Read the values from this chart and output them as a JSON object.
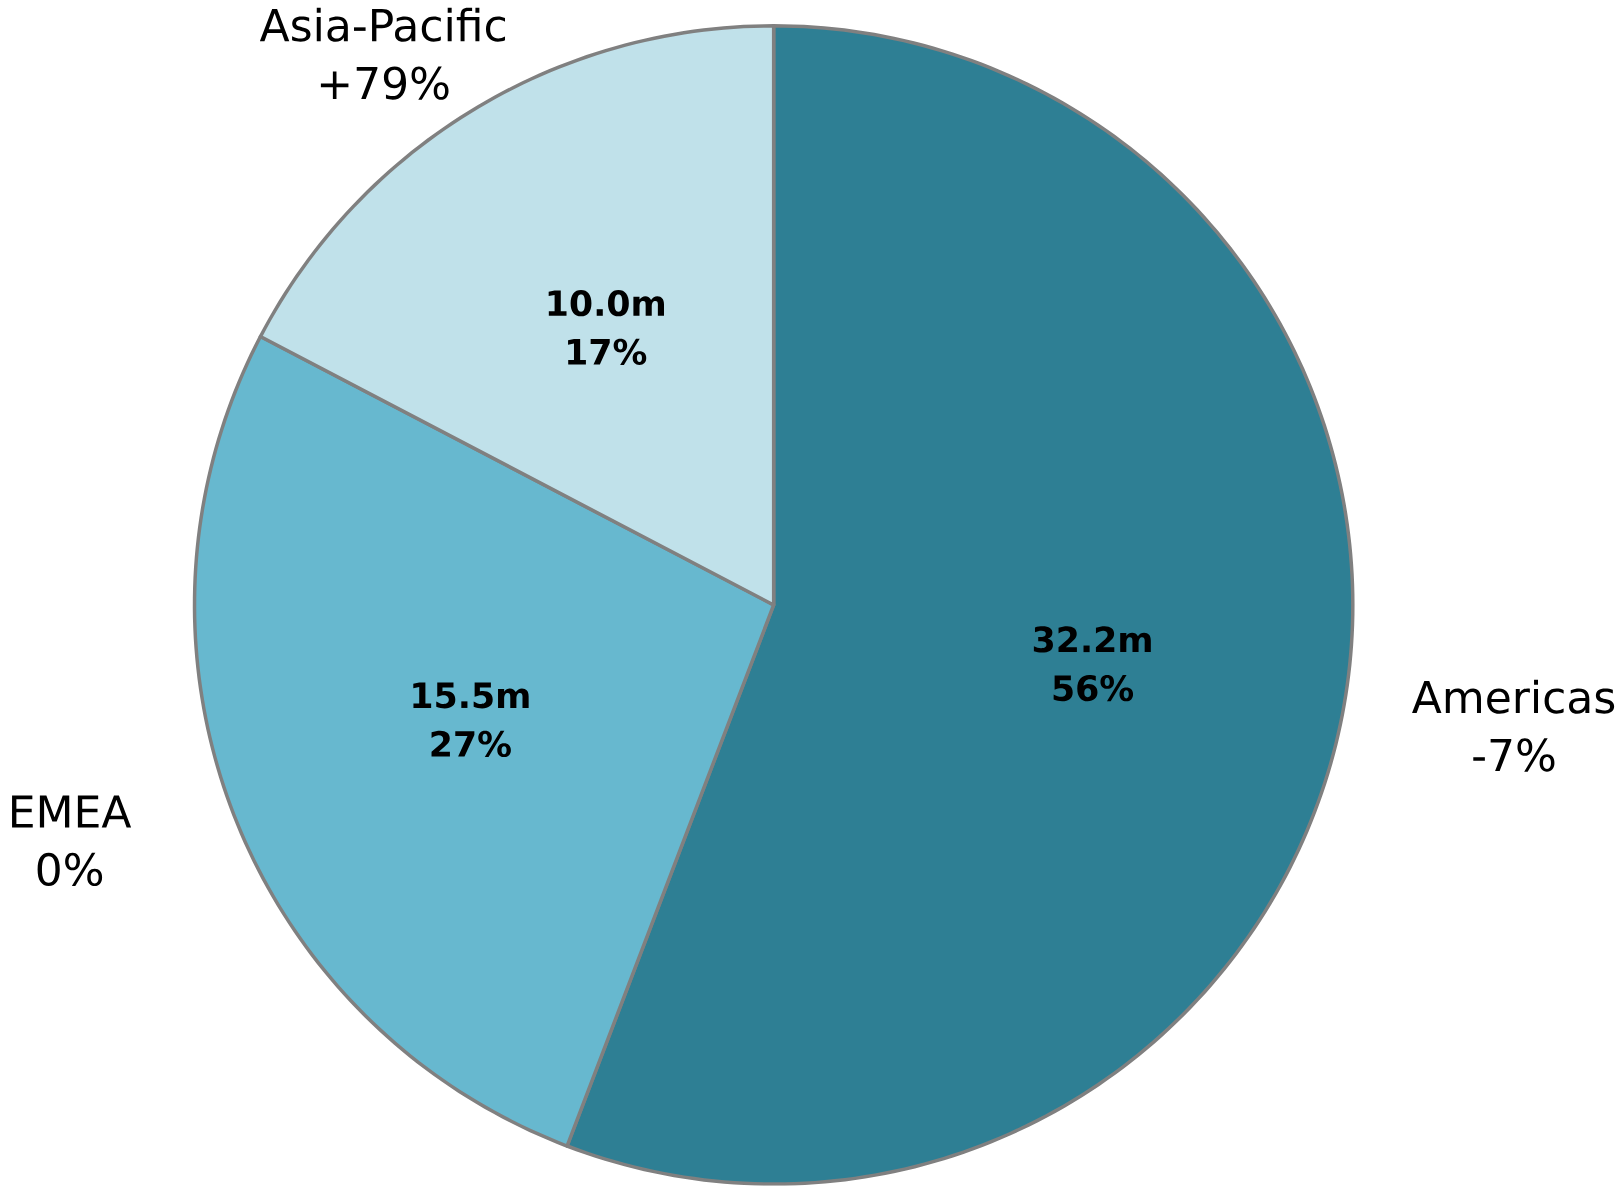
{
  "chart_data": {
    "type": "pie",
    "categories": [
      "Americas",
      "EMEA",
      "Asia-Pacific"
    ],
    "values": [
      32.2,
      15.5,
      10.0
    ],
    "colors": [
      "#2e7f94",
      "#67b8cf",
      "#c0e1ea"
    ],
    "value_labels": [
      "32.2m",
      "15.5m",
      "10.0m"
    ],
    "annotations": [
      "56%",
      "27%",
      "17%",
      "-7%",
      "0%",
      "+79%"
    ],
    "legend": false
  }
}
